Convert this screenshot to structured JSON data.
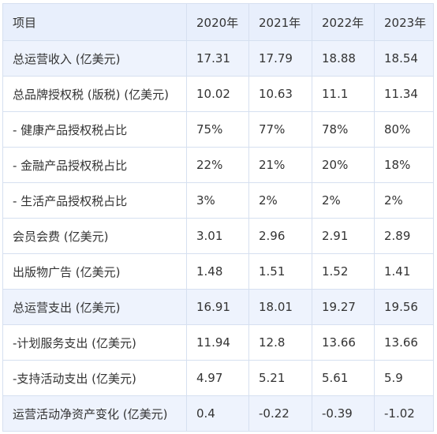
{
  "table": {
    "headers": [
      "项目",
      "2020年",
      "2021年",
      "2022年",
      "2023年"
    ],
    "rows": [
      {
        "label": "总运营收入 (亿美元)",
        "values": [
          "17.31",
          "17.79",
          "18.88",
          "18.54"
        ],
        "highlight": true
      },
      {
        "label": "总品牌授权税 (版税) (亿美元)",
        "values": [
          "10.02",
          "10.63",
          "11.1",
          "11.34"
        ],
        "highlight": false
      },
      {
        "label": "- 健康产品授权税占比",
        "values": [
          "75%",
          "77%",
          "78%",
          "80%"
        ],
        "highlight": false
      },
      {
        "label": "- 金融产品授权税占比",
        "values": [
          "22%",
          "21%",
          "20%",
          "18%"
        ],
        "highlight": false
      },
      {
        "label": "- 生活产品授权税占比",
        "values": [
          "3%",
          "2%",
          "2%",
          "2%"
        ],
        "highlight": false
      },
      {
        "label": "会员会费 (亿美元)",
        "values": [
          "3.01",
          "2.96",
          "2.91",
          "2.89"
        ],
        "highlight": false
      },
      {
        "label": "出版物广告 (亿美元)",
        "values": [
          "1.48",
          "1.51",
          "1.52",
          "1.41"
        ],
        "highlight": false
      },
      {
        "label": "总运营支出 (亿美元)",
        "values": [
          "16.91",
          "18.01",
          "19.27",
          "19.56"
        ],
        "highlight": true
      },
      {
        "label": "-计划服务支出 (亿美元)",
        "values": [
          "11.94",
          "12.8",
          "13.66",
          "13.66"
        ],
        "highlight": false
      },
      {
        "label": "-支持活动支出 (亿美元)",
        "values": [
          "4.97",
          "5.21",
          "5.61",
          "5.9"
        ],
        "highlight": false
      },
      {
        "label": "运营活动净资产变化 (亿美元)",
        "values": [
          "0.4",
          "-0.22",
          "-0.39",
          "-1.02"
        ],
        "highlight": true
      }
    ]
  },
  "colors": {
    "header_bg": "#e8effc",
    "highlight_bg": "#eef3fd",
    "border": "#d6e0f0",
    "text": "#333333"
  }
}
